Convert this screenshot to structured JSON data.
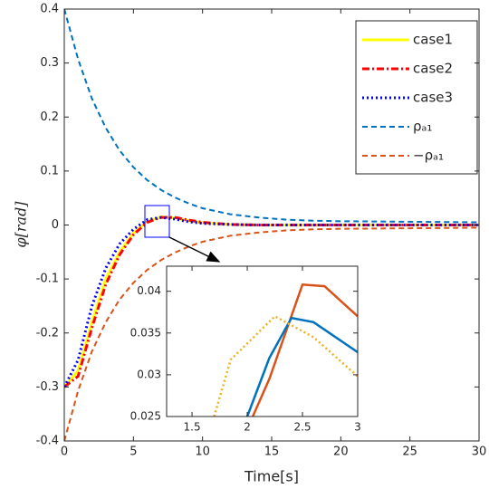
{
  "chart_data": [
    {
      "type": "line",
      "xlabel": "Time[s]",
      "ylabel": "φ[rad]",
      "x": [
        0,
        1,
        2,
        3,
        4,
        5,
        6,
        7,
        8,
        9,
        10,
        12,
        14,
        16,
        18,
        20,
        25,
        30
      ],
      "series": [
        {
          "name": "case1",
          "color": "#FFFF00",
          "style": "solid",
          "values": [
            -0.3,
            -0.27,
            -0.18,
            -0.1,
            -0.05,
            -0.015,
            0.007,
            0.015,
            0.013,
            0.008,
            0.004,
            0.001,
            0,
            0,
            0,
            0,
            0,
            0
          ]
        },
        {
          "name": "case2",
          "color": "#FF0000",
          "style": "dashdot",
          "values": [
            -0.3,
            -0.28,
            -0.19,
            -0.11,
            -0.055,
            -0.018,
            0.005,
            0.014,
            0.014,
            0.009,
            0.005,
            0.001,
            0,
            0,
            0,
            0,
            0,
            0
          ]
        },
        {
          "name": "case3",
          "color": "#0000FF",
          "style": "dotted",
          "values": [
            -0.3,
            -0.25,
            -0.15,
            -0.08,
            -0.035,
            -0.008,
            0.01,
            0.014,
            0.011,
            0.006,
            0.003,
            0.001,
            0,
            0,
            0,
            0,
            0,
            0
          ]
        },
        {
          "name": "ρₐ₁",
          "color": "#0072BD",
          "style": "dashed",
          "values": [
            0.4,
            0.307,
            0.234,
            0.18,
            0.138,
            0.107,
            0.083,
            0.065,
            0.051,
            0.04,
            0.031,
            0.02,
            0.014,
            0.01,
            0.008,
            0.007,
            0.006,
            0.005
          ]
        },
        {
          "name": "−ρₐ₁",
          "color": "#D95319",
          "style": "dashed",
          "values": [
            -0.4,
            -0.307,
            -0.234,
            -0.18,
            -0.138,
            -0.107,
            -0.083,
            -0.065,
            -0.051,
            -0.04,
            -0.031,
            -0.02,
            -0.014,
            -0.01,
            -0.008,
            -0.007,
            -0.006,
            -0.005
          ]
        }
      ],
      "xlim": [
        0,
        30
      ],
      "xticks": [
        0,
        5,
        10,
        15,
        20,
        25,
        30
      ],
      "ylim": [
        -0.4,
        0.4
      ],
      "yticks": [
        0.4,
        0.3,
        0.2,
        0.1,
        0,
        -0.1,
        -0.2,
        -0.3,
        -0.4
      ],
      "legend": "upper right"
    },
    {
      "type": "line",
      "series": [
        {
          "color": "#D95319",
          "style": "solid",
          "x": [
            2.05,
            2.2,
            2.5,
            2.7,
            3
          ],
          "values": [
            0.025,
            0.0295,
            0.0408,
            0.0406,
            0.037
          ]
        },
        {
          "color": "#0072BD",
          "style": "solid",
          "x": [
            2.0,
            2.2,
            2.4,
            2.6,
            3
          ],
          "values": [
            0.025,
            0.032,
            0.0368,
            0.0363,
            0.0327
          ]
        },
        {
          "color": "#EDB120",
          "style": "dotted",
          "x": [
            1.7,
            1.85,
            2.25,
            2.6,
            3
          ],
          "values": [
            0.025,
            0.0318,
            0.037,
            0.0345,
            0.0298
          ]
        }
      ],
      "xlim": [
        1.27,
        3
      ],
      "xticks": [
        1.5,
        2,
        2.5,
        3
      ],
      "ylim": [
        0.025,
        0.043
      ],
      "yticks": [
        0.025,
        0.03,
        0.035,
        0.04
      ]
    }
  ]
}
